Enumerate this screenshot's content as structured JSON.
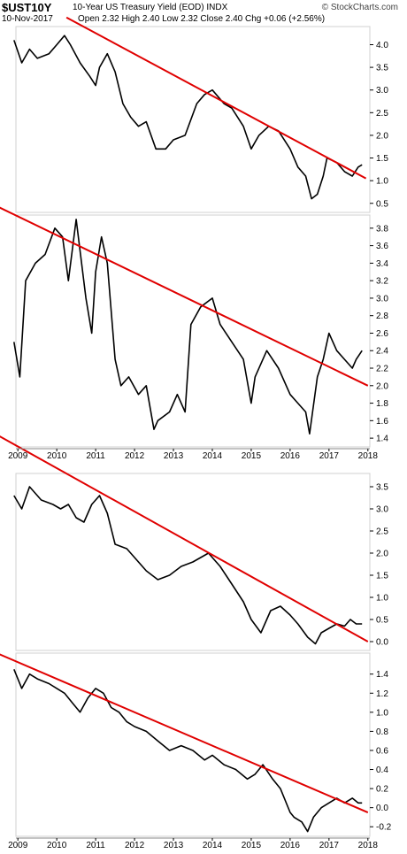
{
  "header": {
    "symbol": "$UST10Y",
    "description": "10-Year US Treasury Yield (EOD) INDX",
    "date": "10-Nov-2017",
    "ohlc": "Open 2.32  High 2.40  Low 2.32  Close 2.40  Chg +0.06 (+2.56%)",
    "brand": "© StockCharts.com"
  },
  "colors": {
    "line": "#000000",
    "trendline": "#e00000",
    "grid": "#b0b0b0"
  },
  "x_ticks": [
    "2009",
    "2010",
    "2011",
    "2012",
    "2013",
    "2014",
    "2015",
    "2016",
    "2017",
    "2018"
  ],
  "chart_data": [
    {
      "type": "line",
      "title": "",
      "ylim": [
        0.3,
        4.4
      ],
      "yticks": [
        "0.5",
        "1.0",
        "1.5",
        "2.0",
        "2.5",
        "3.0",
        "3.5",
        "4.0"
      ],
      "x": [
        2008.9,
        2009.1,
        2009.3,
        2009.5,
        2009.8,
        2010.0,
        2010.2,
        2010.35,
        2010.6,
        2010.85,
        2011.0,
        2011.1,
        2011.3,
        2011.5,
        2011.7,
        2011.9,
        2012.1,
        2012.3,
        2012.55,
        2012.8,
        2013.0,
        2013.3,
        2013.6,
        2013.8,
        2014.0,
        2014.3,
        2014.5,
        2014.8,
        2015.0,
        2015.2,
        2015.45,
        2015.7,
        2016.0,
        2016.2,
        2016.4,
        2016.55,
        2016.7,
        2016.85,
        2016.95,
        2017.2,
        2017.4,
        2017.6,
        2017.75,
        2017.85
      ],
      "y": [
        4.1,
        3.6,
        3.9,
        3.7,
        3.8,
        4.0,
        4.2,
        4.0,
        3.6,
        3.3,
        3.1,
        3.5,
        3.8,
        3.4,
        2.7,
        2.4,
        2.2,
        2.3,
        1.7,
        1.7,
        1.9,
        2.0,
        2.7,
        2.9,
        3.0,
        2.7,
        2.6,
        2.2,
        1.7,
        2.0,
        2.2,
        2.1,
        1.7,
        1.3,
        1.1,
        0.6,
        0.7,
        1.1,
        1.5,
        1.4,
        1.2,
        1.1,
        1.3,
        1.35
      ],
      "trend": {
        "x": [
          2010.25,
          2017.95
        ],
        "y": [
          4.6,
          1.05
        ]
      }
    },
    {
      "type": "line",
      "title": "",
      "ylim": [
        1.3,
        3.95
      ],
      "yticks": [
        "1.4",
        "1.6",
        "1.8",
        "2.0",
        "2.2",
        "2.4",
        "2.6",
        "2.8",
        "3.0",
        "3.2",
        "3.4",
        "3.6",
        "3.8"
      ],
      "x": [
        2008.9,
        2009.05,
        2009.2,
        2009.45,
        2009.7,
        2009.95,
        2010.15,
        2010.3,
        2010.5,
        2010.75,
        2010.9,
        2011.0,
        2011.15,
        2011.3,
        2011.5,
        2011.65,
        2011.85,
        2012.1,
        2012.3,
        2012.5,
        2012.6,
        2012.9,
        2013.1,
        2013.3,
        2013.45,
        2013.7,
        2014.0,
        2014.2,
        2014.5,
        2014.8,
        2015.0,
        2015.1,
        2015.4,
        2015.7,
        2016.0,
        2016.2,
        2016.4,
        2016.5,
        2016.7,
        2016.85,
        2017.0,
        2017.2,
        2017.4,
        2017.6,
        2017.7,
        2017.85
      ],
      "y": [
        2.5,
        2.1,
        3.2,
        3.4,
        3.5,
        3.8,
        3.7,
        3.2,
        3.9,
        3.0,
        2.6,
        3.3,
        3.7,
        3.4,
        2.3,
        2.0,
        2.1,
        1.9,
        2.0,
        1.5,
        1.6,
        1.7,
        1.9,
        1.7,
        2.7,
        2.9,
        3.0,
        2.7,
        2.5,
        2.3,
        1.8,
        2.1,
        2.4,
        2.2,
        1.9,
        1.8,
        1.7,
        1.45,
        2.1,
        2.3,
        2.6,
        2.4,
        2.3,
        2.2,
        2.3,
        2.4
      ],
      "trend": {
        "x": [
          2008.0,
          2018.0
        ],
        "y": [
          4.15,
          2.0
        ]
      }
    },
    {
      "type": "line",
      "title": "",
      "ylim": [
        -0.2,
        3.8
      ],
      "yticks": [
        "0.0",
        "0.5",
        "1.0",
        "1.5",
        "2.0",
        "2.5",
        "3.0",
        "3.5"
      ],
      "x": [
        2008.9,
        2009.1,
        2009.3,
        2009.6,
        2009.9,
        2010.1,
        2010.3,
        2010.5,
        2010.7,
        2010.9,
        2011.1,
        2011.3,
        2011.5,
        2011.8,
        2012.0,
        2012.3,
        2012.6,
        2012.9,
        2013.2,
        2013.5,
        2013.7,
        2013.9,
        2014.2,
        2014.5,
        2014.8,
        2015.0,
        2015.25,
        2015.5,
        2015.75,
        2016.0,
        2016.2,
        2016.45,
        2016.65,
        2016.8,
        2017.0,
        2017.2,
        2017.4,
        2017.55,
        2017.7,
        2017.85
      ],
      "y": [
        3.3,
        3.0,
        3.5,
        3.2,
        3.1,
        3.0,
        3.1,
        2.8,
        2.7,
        3.1,
        3.3,
        2.9,
        2.2,
        2.1,
        1.9,
        1.6,
        1.4,
        1.5,
        1.7,
        1.8,
        1.9,
        2.0,
        1.7,
        1.3,
        0.9,
        0.5,
        0.2,
        0.7,
        0.8,
        0.6,
        0.4,
        0.1,
        -0.05,
        0.2,
        0.3,
        0.4,
        0.35,
        0.5,
        0.4,
        0.4
      ],
      "trend": {
        "x": [
          2008.0,
          2018.0
        ],
        "y": [
          4.9,
          0.0
        ]
      }
    },
    {
      "type": "line",
      "title": "",
      "ylim": [
        -0.3,
        1.62
      ],
      "yticks": [
        "-0.2",
        "0.0",
        "0.2",
        "0.4",
        "0.6",
        "0.8",
        "1.0",
        "1.2",
        "1.4"
      ],
      "x": [
        2008.9,
        2009.1,
        2009.3,
        2009.5,
        2009.8,
        2010.0,
        2010.2,
        2010.4,
        2010.6,
        2010.8,
        2011.0,
        2011.2,
        2011.4,
        2011.6,
        2011.8,
        2012.0,
        2012.3,
        2012.6,
        2012.9,
        2013.2,
        2013.5,
        2013.8,
        2014.0,
        2014.3,
        2014.6,
        2014.9,
        2015.1,
        2015.3,
        2015.55,
        2015.75,
        2016.0,
        2016.1,
        2016.3,
        2016.45,
        2016.6,
        2016.8,
        2017.0,
        2017.2,
        2017.4,
        2017.6,
        2017.75,
        2017.85
      ],
      "y": [
        1.45,
        1.25,
        1.4,
        1.35,
        1.3,
        1.25,
        1.2,
        1.1,
        1.0,
        1.15,
        1.25,
        1.2,
        1.05,
        1.0,
        0.9,
        0.85,
        0.8,
        0.7,
        0.6,
        0.65,
        0.6,
        0.5,
        0.55,
        0.45,
        0.4,
        0.3,
        0.35,
        0.45,
        0.3,
        0.2,
        -0.05,
        -0.1,
        -0.15,
        -0.25,
        -0.1,
        0.0,
        0.05,
        0.1,
        0.05,
        0.1,
        0.05,
        0.05
      ],
      "trend": {
        "x": [
          2008.0,
          2018.0
        ],
        "y": [
          1.7,
          -0.05
        ]
      }
    }
  ]
}
